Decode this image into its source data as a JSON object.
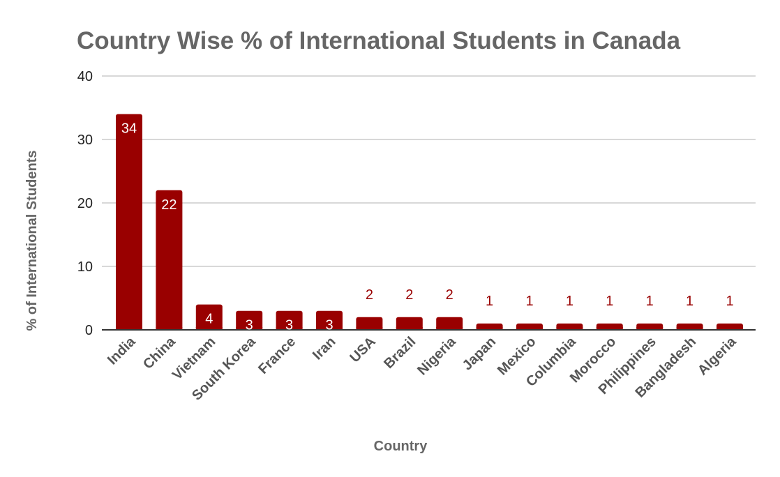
{
  "chart_data": {
    "type": "bar",
    "title": "Country Wise % of International Students in Canada",
    "xlabel": "Country",
    "ylabel": "% of International Students",
    "categories": [
      "India",
      "China",
      "Vietnam",
      "South Korea",
      "France",
      "Iran",
      "USA",
      "Brazil",
      "Nigeria",
      "Japan",
      "Mexico",
      "Columbia",
      "Morocco",
      "Philippines",
      "Bangladesh",
      "Algeria"
    ],
    "values": [
      34,
      22,
      4,
      3,
      3,
      3,
      2,
      2,
      2,
      1,
      1,
      1,
      1,
      1,
      1,
      1
    ],
    "ylim": [
      0,
      40
    ],
    "yticks": [
      0,
      10,
      20,
      30,
      40
    ],
    "grid": true,
    "legend": "none",
    "data_labels": true,
    "colors": {
      "bar": "#990000",
      "title": "#666666",
      "grid": "#cccccc",
      "axis": "#333333",
      "label_inside": "#ffffff",
      "label_outside": "#990000"
    }
  }
}
